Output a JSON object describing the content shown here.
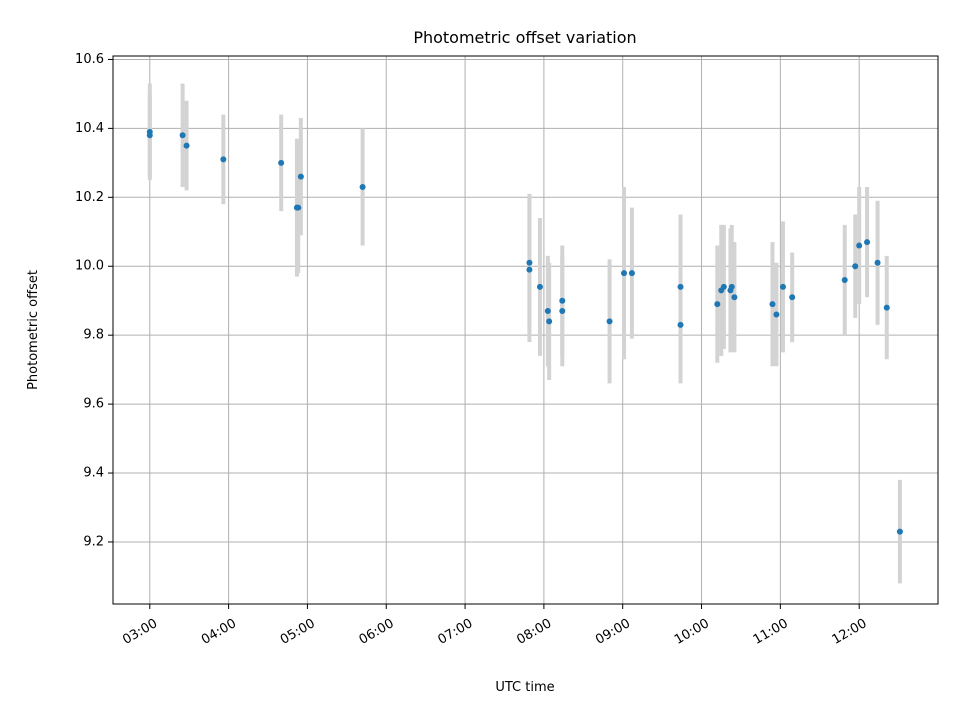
{
  "chart_data": {
    "type": "scatter",
    "title": "Photometric offset variation",
    "xlabel": "UTC time",
    "ylabel": "Photometric offset",
    "x_unit": "hours UTC",
    "xlim": [
      "02:32",
      "13:00"
    ],
    "ylim": [
      9.02,
      10.61
    ],
    "xticks": [
      "03:00",
      "04:00",
      "05:00",
      "06:00",
      "07:00",
      "08:00",
      "09:00",
      "10:00",
      "11:00",
      "12:00"
    ],
    "yticks": [
      "9.2",
      "9.4",
      "9.6",
      "9.8",
      "10.0",
      "10.2",
      "10.4",
      "10.6"
    ],
    "grid": true,
    "point_color": "#1f77b4",
    "errorbar_color": "#d3d3d3",
    "points": [
      {
        "t": "03:00",
        "y": 10.39,
        "err": 0.14
      },
      {
        "t": "03:00",
        "y": 10.38,
        "err": 0.12
      },
      {
        "t": "03:25",
        "y": 10.38,
        "err": 0.15
      },
      {
        "t": "03:28",
        "y": 10.35,
        "err": 0.13
      },
      {
        "t": "03:56",
        "y": 10.31,
        "err": 0.13
      },
      {
        "t": "04:40",
        "y": 10.3,
        "err": 0.14
      },
      {
        "t": "04:52",
        "y": 10.17,
        "err": 0.2
      },
      {
        "t": "04:53",
        "y": 10.17,
        "err": 0.19
      },
      {
        "t": "04:55",
        "y": 10.26,
        "err": 0.17
      },
      {
        "t": "05:42",
        "y": 10.23,
        "err": 0.17
      },
      {
        "t": "07:49",
        "y": 10.01,
        "err": 0.2
      },
      {
        "t": "07:49",
        "y": 9.99,
        "err": 0.21
      },
      {
        "t": "07:57",
        "y": 9.94,
        "err": 0.2
      },
      {
        "t": "08:03",
        "y": 9.87,
        "err": 0.16
      },
      {
        "t": "08:04",
        "y": 9.84,
        "err": 0.17
      },
      {
        "t": "08:14",
        "y": 9.9,
        "err": 0.16
      },
      {
        "t": "08:14",
        "y": 9.87,
        "err": 0.16
      },
      {
        "t": "08:50",
        "y": 9.84,
        "err": 0.18
      },
      {
        "t": "09:01",
        "y": 9.98,
        "err": 0.25
      },
      {
        "t": "09:07",
        "y": 9.98,
        "err": 0.19
      },
      {
        "t": "09:44",
        "y": 9.94,
        "err": 0.21
      },
      {
        "t": "09:44",
        "y": 9.83,
        "err": 0.17
      },
      {
        "t": "10:12",
        "y": 9.89,
        "err": 0.17
      },
      {
        "t": "10:15",
        "y": 9.93,
        "err": 0.19
      },
      {
        "t": "10:17",
        "y": 9.94,
        "err": 0.18
      },
      {
        "t": "10:22",
        "y": 9.93,
        "err": 0.18
      },
      {
        "t": "10:23",
        "y": 9.94,
        "err": 0.18
      },
      {
        "t": "10:25",
        "y": 9.91,
        "err": 0.16
      },
      {
        "t": "10:54",
        "y": 9.89,
        "err": 0.18
      },
      {
        "t": "10:57",
        "y": 9.86,
        "err": 0.15
      },
      {
        "t": "11:02",
        "y": 9.94,
        "err": 0.19
      },
      {
        "t": "11:09",
        "y": 9.91,
        "err": 0.13
      },
      {
        "t": "11:49",
        "y": 9.96,
        "err": 0.16
      },
      {
        "t": "11:57",
        "y": 10.0,
        "err": 0.15
      },
      {
        "t": "12:00",
        "y": 10.06,
        "err": 0.17
      },
      {
        "t": "12:06",
        "y": 10.07,
        "err": 0.16
      },
      {
        "t": "12:14",
        "y": 10.01,
        "err": 0.18
      },
      {
        "t": "12:21",
        "y": 9.88,
        "err": 0.15
      },
      {
        "t": "12:31",
        "y": 9.23,
        "err": 0.15
      }
    ]
  }
}
